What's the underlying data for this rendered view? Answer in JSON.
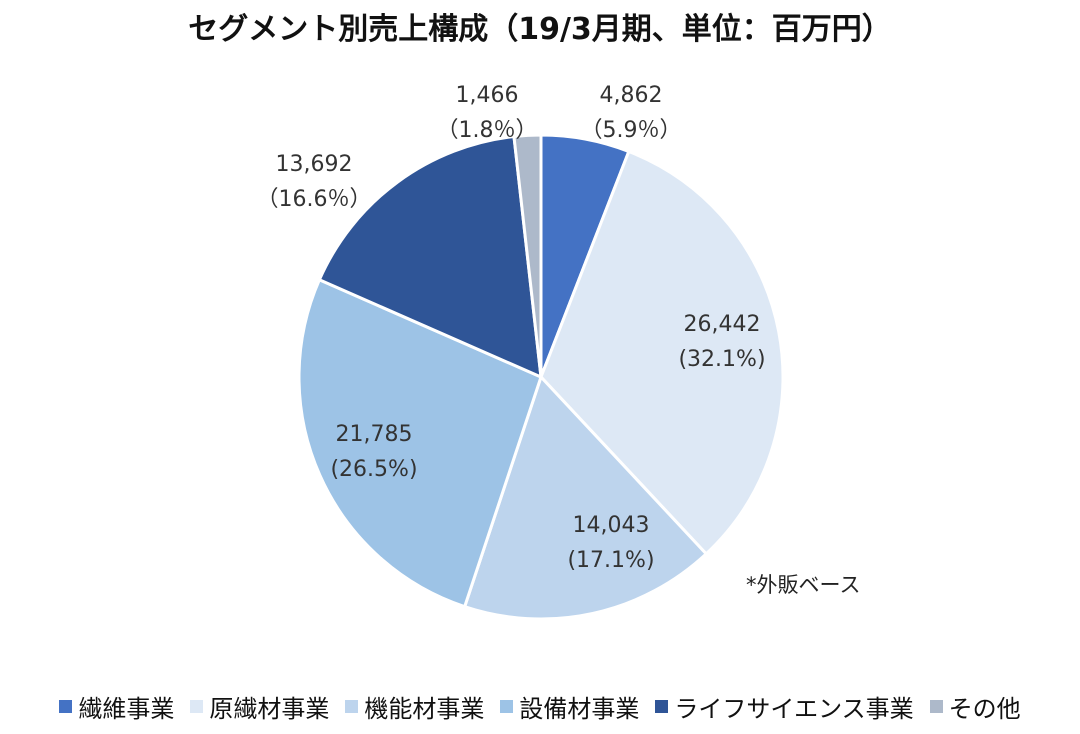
{
  "title": "セグメント別売上構成（19/3月期、単位：百万円）",
  "note": "*外販ベース",
  "chart_data": {
    "type": "pie",
    "title": "セグメント別売上構成（19/3月期、単位：百万円）",
    "start_angle_deg": 0,
    "direction": "clockwise",
    "legend_position": "bottom",
    "slices": [
      {
        "name": "繊維事業",
        "value": 4862,
        "value_label": "4,862",
        "percent_label": "（5.9％）",
        "color": "#4472c4"
      },
      {
        "name": "原繊材事業",
        "value": 26442,
        "value_label": "26,442",
        "percent_label": "(32.1%)",
        "color": "#dde8f5"
      },
      {
        "name": "機能材事業",
        "value": 14043,
        "value_label": "14,043",
        "percent_label": "(17.1%)",
        "color": "#bdd4ed"
      },
      {
        "name": "設備材事業",
        "value": 21785,
        "value_label": "21,785",
        "percent_label": "(26.5%)",
        "color": "#9dc3e6"
      },
      {
        "name": "ライフサイエンス事業",
        "value": 13692,
        "value_label": "13,692",
        "percent_label": "（16.6％）",
        "color": "#2f5597"
      },
      {
        "name": "その他",
        "value": 1466,
        "value_label": "1,466",
        "percent_label": "（1.8％）",
        "color": "#adb9ca"
      }
    ]
  }
}
